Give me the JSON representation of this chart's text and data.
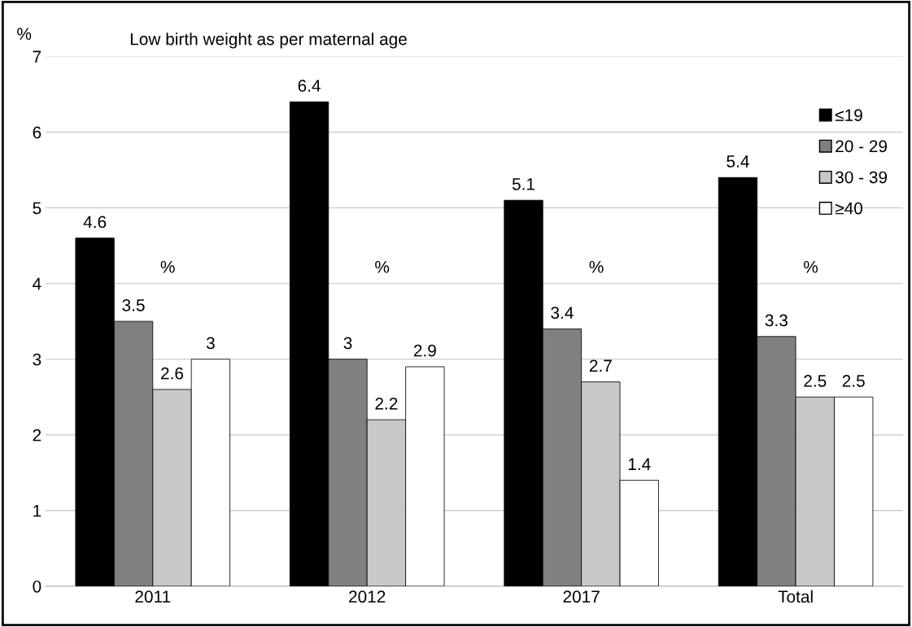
{
  "chart_data": {
    "type": "bar",
    "title": "Low birth weight as per maternal age",
    "ylabel": "%",
    "categories": [
      "2011",
      "2012",
      "2017",
      "Total"
    ],
    "series": [
      {
        "name": "≤19",
        "color": "#000000",
        "values": [
          4.6,
          6.4,
          5.1,
          5.4
        ]
      },
      {
        "name": "20 - 29",
        "color": "#808080",
        "values": [
          3.5,
          3,
          3.4,
          3.3
        ]
      },
      {
        "name": "30 - 39",
        "color": "#c8c8c8",
        "values": [
          2.6,
          2.2,
          2.7,
          2.5
        ]
      },
      {
        "name": "≥40",
        "color": "#ffffff",
        "values": [
          3,
          2.9,
          1.4,
          2.5
        ]
      }
    ],
    "ylim": [
      0,
      7
    ],
    "yticks": [
      0,
      1,
      2,
      3,
      4,
      5,
      6,
      7
    ],
    "grid": "y",
    "legend": "top right",
    "data_labels": true,
    "annotations": [
      "%",
      "%",
      "%",
      "%"
    ]
  }
}
